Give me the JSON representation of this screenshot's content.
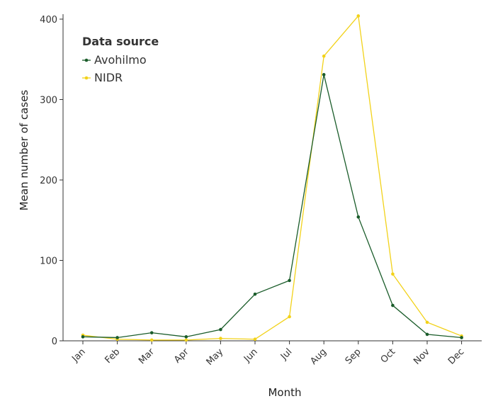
{
  "chart_data": {
    "type": "line",
    "categories": [
      "Jan",
      "Feb",
      "Mar",
      "Apr",
      "May",
      "Jun",
      "Jul",
      "Aug",
      "Sep",
      "Oct",
      "Nov",
      "Dec"
    ],
    "series": [
      {
        "name": "Avohilmo",
        "color": "#1a5c2a",
        "values": [
          5,
          4,
          10,
          5,
          14,
          58,
          75,
          331,
          154,
          44,
          8,
          4
        ]
      },
      {
        "name": "NIDR",
        "color": "#f2d21a",
        "values": [
          7,
          2,
          1,
          1,
          3,
          2,
          30,
          354,
          404,
          83,
          23,
          6
        ]
      }
    ],
    "xlabel": "Month",
    "ylabel": "Mean number of cases",
    "ylim": [
      0,
      400
    ],
    "yticks": [
      0,
      100,
      200,
      300,
      400
    ],
    "legend": {
      "title": "Data source",
      "position": "top-left"
    },
    "grid": false
  }
}
